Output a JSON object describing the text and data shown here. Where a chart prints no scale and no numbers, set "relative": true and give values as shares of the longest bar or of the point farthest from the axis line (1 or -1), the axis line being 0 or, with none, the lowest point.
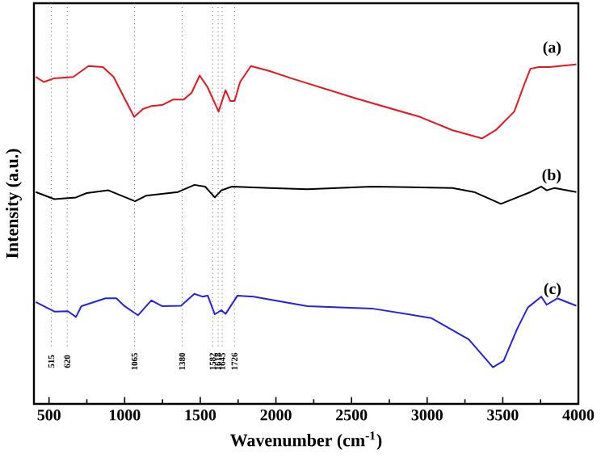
{
  "chart_data": {
    "type": "line",
    "relative": true,
    "xlabel": "Wavenumber (cm$^{-1}$)",
    "ylabel": "Intensity (a.u.)",
    "xlim": [
      400,
      4000
    ],
    "xticks": [
      500,
      1000,
      1500,
      2000,
      2500,
      3000,
      3500,
      4000
    ],
    "series": [
      {
        "name": "(a)",
        "color": "#e8141e",
        "x": [
          412,
          465,
          535,
          660,
          760,
          856,
          927,
          999,
          1063,
          1122,
          1176,
          1247,
          1319,
          1389,
          1442,
          1496,
          1549,
          1621,
          1667,
          1699,
          1727,
          1763,
          1835,
          1959,
          2101,
          2528,
          2954,
          3168,
          3363,
          3453,
          3576,
          3648,
          3683,
          3737,
          3808,
          3986
        ],
        "values": [
          0.963,
          0.948,
          0.959,
          0.963,
          0.995,
          0.992,
          0.963,
          0.9,
          0.845,
          0.869,
          0.877,
          0.88,
          0.896,
          0.896,
          0.916,
          0.967,
          0.932,
          0.861,
          0.924,
          0.892,
          0.892,
          0.948,
          0.995,
          0.98,
          0.959,
          0.9,
          0.845,
          0.806,
          0.782,
          0.806,
          0.861,
          0.948,
          0.987,
          0.992,
          0.992,
          1.0
        ]
      },
      {
        "name": "(b)",
        "color": "#000000",
        "x": [
          412,
          535,
          678,
          749,
          892,
          1069,
          1140,
          1353,
          1461,
          1532,
          1596,
          1639,
          1709,
          1959,
          2208,
          2634,
          3168,
          3310,
          3488,
          3595,
          3683,
          3755,
          3790,
          3843,
          3986
        ],
        "values": [
          0.624,
          0.603,
          0.608,
          0.621,
          0.629,
          0.597,
          0.613,
          0.624,
          0.645,
          0.64,
          0.608,
          0.629,
          0.64,
          0.636,
          0.632,
          0.64,
          0.636,
          0.624,
          0.589,
          0.608,
          0.624,
          0.64,
          0.629,
          0.636,
          0.624
        ]
      },
      {
        "name": "(c)",
        "color": "#2222e0",
        "x": [
          412,
          535,
          625,
          678,
          714,
          874,
          945,
          999,
          1088,
          1176,
          1247,
          1372,
          1461,
          1514,
          1549,
          1596,
          1639,
          1667,
          1746,
          1852,
          2208,
          2634,
          3026,
          3275,
          3435,
          3506,
          3595,
          3666,
          3755,
          3790,
          3861,
          3986
        ],
        "values": [
          0.3,
          0.272,
          0.273,
          0.256,
          0.288,
          0.311,
          0.311,
          0.288,
          0.261,
          0.305,
          0.288,
          0.289,
          0.324,
          0.316,
          0.319,
          0.264,
          0.276,
          0.265,
          0.319,
          0.316,
          0.288,
          0.281,
          0.253,
          0.19,
          0.108,
          0.127,
          0.221,
          0.284,
          0.316,
          0.292,
          0.311,
          0.289
        ]
      }
    ],
    "ref_lines": [
      {
        "axis": "x",
        "value": 515,
        "label": "515"
      },
      {
        "axis": "x",
        "value": 620,
        "label": "620"
      },
      {
        "axis": "x",
        "value": 1065,
        "label": "1065"
      },
      {
        "axis": "x",
        "value": 1380,
        "label": "1380"
      },
      {
        "axis": "x",
        "value": 1582,
        "label": "1582"
      },
      {
        "axis": "x",
        "value": 1618,
        "label": "1618"
      },
      {
        "axis": "x",
        "value": 1645,
        "label": "1645"
      },
      {
        "axis": "x",
        "value": 1726,
        "label": "1726"
      }
    ]
  }
}
